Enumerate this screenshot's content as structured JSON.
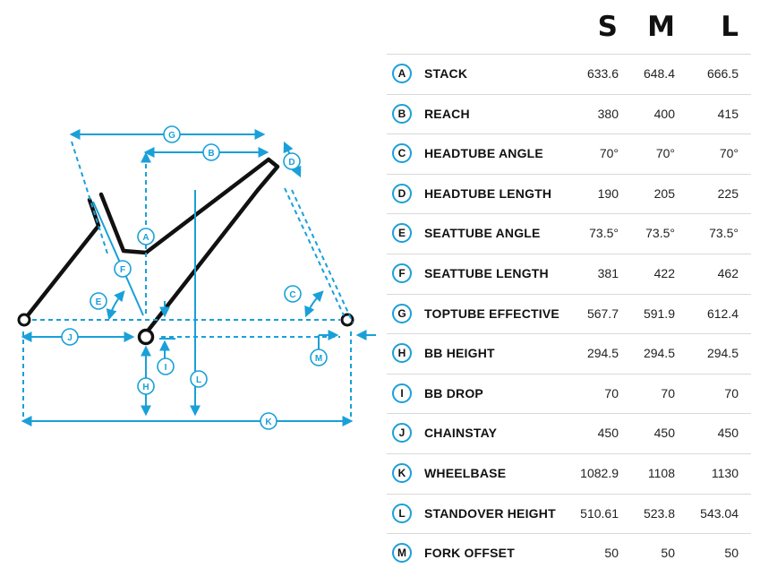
{
  "sizes": [
    "S",
    "M",
    "L"
  ],
  "colors": {
    "accent": "#1aa0d8",
    "frame": "#111111",
    "divider": "#d9d9d9"
  },
  "rows": [
    {
      "code": "A",
      "label": "STACK",
      "values": [
        "633.6",
        "648.4",
        "666.5"
      ]
    },
    {
      "code": "B",
      "label": "REACH",
      "values": [
        "380",
        "400",
        "415"
      ]
    },
    {
      "code": "C",
      "label": "HEADTUBE ANGLE",
      "values": [
        "70°",
        "70°",
        "70°"
      ]
    },
    {
      "code": "D",
      "label": "HEADTUBE LENGTH",
      "values": [
        "190",
        "205",
        "225"
      ]
    },
    {
      "code": "E",
      "label": "SEATTUBE ANGLE",
      "values": [
        "73.5°",
        "73.5°",
        "73.5°"
      ]
    },
    {
      "code": "F",
      "label": "SEATTUBE LENGTH",
      "values": [
        "381",
        "422",
        "462"
      ]
    },
    {
      "code": "G",
      "label": "TOPTUBE EFFECTIVE",
      "values": [
        "567.7",
        "591.9",
        "612.4"
      ]
    },
    {
      "code": "H",
      "label": "BB HEIGHT",
      "values": [
        "294.5",
        "294.5",
        "294.5"
      ]
    },
    {
      "code": "I",
      "label": "BB DROP",
      "values": [
        "70",
        "70",
        "70"
      ]
    },
    {
      "code": "J",
      "label": "CHAINSTAY",
      "values": [
        "450",
        "450",
        "450"
      ]
    },
    {
      "code": "K",
      "label": "WHEELBASE",
      "values": [
        "1082.9",
        "1108",
        "1130"
      ]
    },
    {
      "code": "L",
      "label": "STANDOVER HEIGHT",
      "values": [
        "510.61",
        "523.8",
        "543.04"
      ]
    },
    {
      "code": "M",
      "label": "FORK OFFSET",
      "values": [
        "50",
        "50",
        "50"
      ]
    }
  ]
}
